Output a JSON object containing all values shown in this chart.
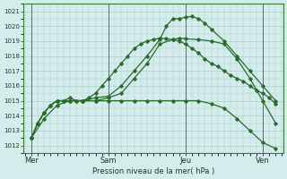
{
  "background_color": "#d4ecec",
  "grid_color": "#aacece",
  "line_color": "#2a6b2a",
  "xlabel": "Pression niveau de la mer( hPa )",
  "ylim": [
    1011.5,
    1021.5
  ],
  "yticks": [
    1012,
    1013,
    1014,
    1015,
    1016,
    1017,
    1018,
    1019,
    1020,
    1021
  ],
  "day_labels": [
    "Mer",
    "Sam",
    "Jeu",
    "Ven"
  ],
  "day_positions": [
    0,
    3,
    6,
    9
  ],
  "vline_positions": [
    0,
    3,
    6,
    9
  ],
  "series": [
    {
      "x": [
        0.0,
        0.25,
        0.5,
        0.75,
        1.0,
        1.25,
        1.5,
        1.75,
        2.0,
        2.25,
        2.5,
        2.75,
        3.0,
        3.25,
        3.5,
        3.75,
        4.0,
        4.25,
        4.5,
        4.75,
        5.0,
        5.25,
        5.5,
        5.75,
        6.0,
        6.25,
        6.5,
        6.75,
        7.0,
        7.25,
        7.5,
        7.75,
        8.0,
        8.25,
        8.5,
        8.75,
        9.0,
        9.25,
        9.5
      ],
      "y": [
        1012.5,
        1013.5,
        1014.2,
        1014.7,
        1015.0,
        1015.0,
        1015.2,
        1015.0,
        1015.0,
        1015.2,
        1015.5,
        1016.0,
        1016.5,
        1017.0,
        1017.5,
        1018.0,
        1018.5,
        1018.8,
        1019.0,
        1019.1,
        1019.2,
        1019.15,
        1019.1,
        1019.0,
        1018.8,
        1018.5,
        1018.2,
        1017.8,
        1017.5,
        1017.3,
        1017.0,
        1016.7,
        1016.5,
        1016.3,
        1016.0,
        1015.7,
        1015.5,
        1015.2,
        1014.8
      ]
    },
    {
      "x": [
        0.0,
        0.25,
        0.5,
        0.75,
        1.0,
        1.25,
        1.5,
        1.75,
        2.0,
        2.5,
        3.0,
        3.5,
        4.0,
        4.5,
        5.0,
        5.25,
        5.5,
        5.75,
        6.0,
        6.25,
        6.5,
        6.75,
        7.0,
        7.5,
        8.0,
        8.5,
        9.0,
        9.5
      ],
      "y": [
        1012.5,
        1013.5,
        1014.2,
        1014.7,
        1015.0,
        1015.0,
        1015.0,
        1015.0,
        1015.0,
        1015.2,
        1015.3,
        1016.0,
        1017.0,
        1018.0,
        1019.1,
        1020.0,
        1020.5,
        1020.5,
        1020.6,
        1020.65,
        1020.5,
        1020.2,
        1019.8,
        1019.0,
        1018.0,
        1017.0,
        1016.0,
        1015.0
      ]
    },
    {
      "x": [
        0.0,
        0.25,
        0.5,
        0.75,
        1.0,
        1.5,
        2.0,
        2.5,
        3.0,
        3.5,
        4.0,
        4.5,
        5.0,
        5.5,
        5.75,
        6.0,
        6.5,
        7.0,
        7.5,
        8.0,
        8.5,
        9.0,
        9.5
      ],
      "y": [
        1012.5,
        1013.5,
        1014.2,
        1014.7,
        1015.0,
        1015.0,
        1015.0,
        1015.0,
        1015.2,
        1015.5,
        1016.5,
        1017.5,
        1018.8,
        1019.1,
        1019.2,
        1019.15,
        1019.1,
        1019.0,
        1018.8,
        1017.8,
        1016.5,
        1015.0,
        1013.5
      ]
    },
    {
      "x": [
        0.0,
        0.5,
        1.0,
        1.5,
        2.0,
        2.5,
        3.0,
        3.5,
        4.0,
        4.5,
        5.0,
        5.5,
        6.0,
        6.5,
        7.0,
        7.5,
        8.0,
        8.5,
        9.0,
        9.5
      ],
      "y": [
        1012.5,
        1013.8,
        1014.7,
        1015.0,
        1015.0,
        1015.0,
        1015.0,
        1015.0,
        1015.0,
        1015.0,
        1015.0,
        1015.0,
        1015.0,
        1015.0,
        1014.8,
        1014.5,
        1013.8,
        1013.0,
        1012.2,
        1011.8
      ]
    }
  ]
}
